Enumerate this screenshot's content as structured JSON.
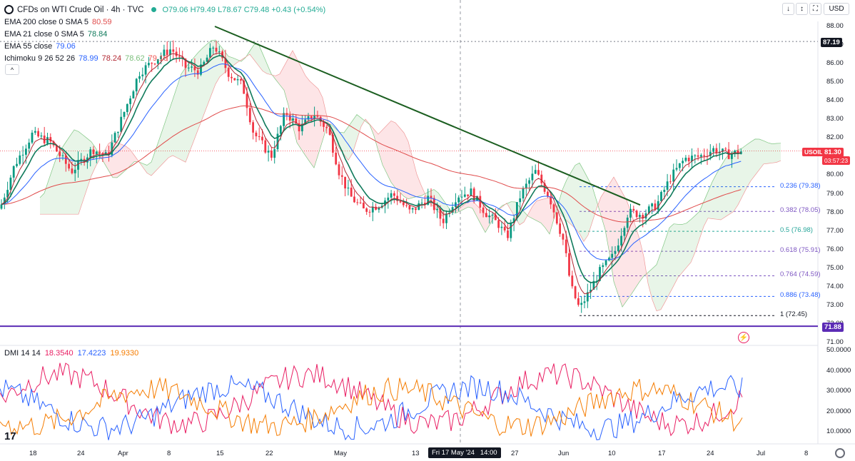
{
  "header": {
    "title": "CFDs on WTI Crude Oil · 4h · TVC",
    "ohlc": "O79.06 H79.49 L78.67 C79.48 +0.43 (+0.54%)",
    "currency": "USD",
    "collapse_glyph": "^"
  },
  "indicators": [
    {
      "label": "EMA 200 close 0 SMA 5",
      "value": "80.59",
      "color": "#e04b4b"
    },
    {
      "label": "EMA 21 close 0 SMA 5",
      "value": "78.84",
      "color": "#0f7a5b"
    },
    {
      "label": "EMA 55 close",
      "value": "79.06",
      "color": "#2962ff"
    },
    {
      "label": "Ichimoku 9 26 52 26",
      "values": [
        "78.99",
        "78.24",
        "78.62",
        "79.19"
      ],
      "colors": [
        "#2962ff",
        "#b22833",
        "#7cbf7c",
        "#ef5350"
      ]
    }
  ],
  "dmi": {
    "label": "DMI 14 14",
    "values": [
      "18.3540",
      "17.4223",
      "19.9330"
    ],
    "colors": [
      "#e91e63",
      "#2962ff",
      "#f57c00"
    ]
  },
  "price_axis": [
    "88.00",
    "87.00",
    "86.00",
    "85.00",
    "84.00",
    "83.00",
    "82.00",
    "81.00",
    "80.00",
    "79.00",
    "78.00",
    "77.00",
    "76.00",
    "75.00",
    "74.00",
    "73.00",
    "72.00",
    "71.00"
  ],
  "dmi_axis": [
    "50.0000",
    "40.0000",
    "30.0000",
    "20.0000",
    "10.0000"
  ],
  "tags": {
    "high_line": "87.19",
    "symbol": "USOIL",
    "last_price": "81.30",
    "countdown": "03:57:23",
    "support": "71.88"
  },
  "fib_levels": [
    {
      "label": "0.236 (79.38)",
      "color": "#2962ff",
      "price": 79.38
    },
    {
      "label": "0.382 (78.05)",
      "color": "#7e57c2",
      "price": 78.05
    },
    {
      "label": "0.5 (76.98)",
      "color": "#26a69a",
      "price": 76.98
    },
    {
      "label": "0.618 (75.91)",
      "color": "#7e57c2",
      "price": 75.91
    },
    {
      "label": "0.764 (74.59)",
      "color": "#7e57c2",
      "price": 74.59
    },
    {
      "label": "0.886 (73.48)",
      "color": "#2962ff",
      "price": 73.48
    },
    {
      "label": "1 (72.45)",
      "color": "#131722",
      "price": 72.45
    }
  ],
  "time_axis": [
    "18",
    "24",
    "Apr",
    "8",
    "15",
    "22",
    "May",
    "13",
    "Fri 17 May '24",
    "14:00",
    "27",
    "Jun",
    "10",
    "17",
    "24",
    "Jul",
    "8"
  ],
  "toolbar": {
    "down_glyph": "↓",
    "updown_glyph": "↕",
    "fullscreen_glyph": "⛶"
  },
  "chart_data": {
    "type": "candlestick",
    "title": "CFDs on WTI Crude Oil · 4h · TVC",
    "price_range": [
      71,
      88.5
    ],
    "trendline": {
      "from": [
        88.0,
        "Apr 12"
      ],
      "to": [
        78.4,
        "Jun 12"
      ]
    },
    "horizontal_levels": {
      "resistance": 87.19,
      "support": 71.88,
      "last": 81.3
    },
    "dmi_range": [
      5,
      50
    ]
  }
}
